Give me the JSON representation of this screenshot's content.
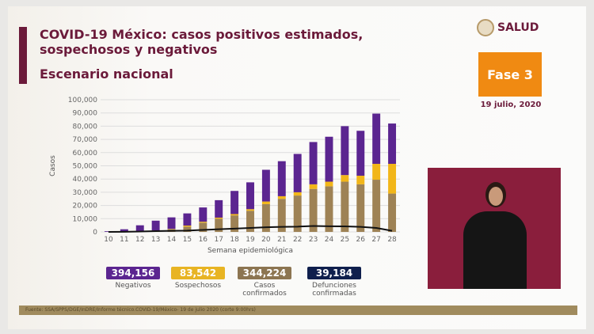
{
  "header": {
    "title": "COVID-19 México: casos positivos estimados, sospechosos y negativos",
    "subtitle": "Escenario nacional",
    "logo": "SALUD",
    "phase": "Fase 3",
    "date": "19 julio, 2020"
  },
  "colors": {
    "negativos": "#5b2590",
    "sospechosos": "#f2b619",
    "confirmados": "#9e8255",
    "defunciones": "#111111",
    "brand": "#6b1a3a",
    "phase": "#f08a12"
  },
  "stats": [
    {
      "value": "394,156",
      "label": "Negativos",
      "color": "#5b2590"
    },
    {
      "value": "83,542",
      "label": "Sospechosos",
      "color": "#e8b423"
    },
    {
      "value": "344,224",
      "label": "Casos confirmados",
      "color": "#8c7551"
    },
    {
      "value": "39,184",
      "label": "Defunciones confirmadas",
      "color": "#0f1f4d"
    }
  ],
  "source": "Fuente: SSA/SPPS/DGE/InDRE/Informe técnico.COVID-19/México- 19 de julio 2020 (corte 9:00hrs)",
  "chart_data": {
    "type": "bar",
    "xlabel": "Semana epidemiológica",
    "ylabel": "Casos",
    "ylim": [
      0,
      100000
    ],
    "yticks": [
      "0",
      "10,000",
      "20,000",
      "30,000",
      "40,000",
      "50,000",
      "60,000",
      "70,000",
      "80,000",
      "90,000",
      "100,000"
    ],
    "categories": [
      "10",
      "11",
      "12",
      "13",
      "14",
      "15",
      "16",
      "17",
      "18",
      "19",
      "20",
      "21",
      "22",
      "23",
      "24",
      "25",
      "26",
      "27",
      "28"
    ],
    "stacked": true,
    "grid": true,
    "series": [
      {
        "key": "confirmados",
        "values": [
          0,
          200,
          500,
          1000,
          2000,
          4000,
          7000,
          10000,
          12500,
          16000,
          21000,
          25000,
          27500,
          32500,
          34500,
          38000,
          36000,
          39500,
          29000
        ]
      },
      {
        "key": "sospechosos",
        "values": [
          0,
          0,
          0,
          100,
          300,
          800,
          700,
          800,
          1000,
          1200,
          2000,
          2000,
          2500,
          3500,
          3500,
          5000,
          6500,
          12000,
          22500
        ]
      },
      {
        "key": "negativos",
        "values": [
          500,
          1800,
          4500,
          7400,
          8700,
          9200,
          10800,
          13200,
          17500,
          20300,
          24000,
          26500,
          29000,
          32000,
          34000,
          37000,
          34000,
          38000,
          30500
        ]
      },
      {
        "key": "defunciones",
        "type": "line",
        "values": [
          0,
          100,
          300,
          600,
          800,
          1000,
          1500,
          2000,
          2500,
          3000,
          3500,
          3800,
          4000,
          4500,
          4300,
          4200,
          3800,
          3000,
          800
        ]
      }
    ]
  }
}
